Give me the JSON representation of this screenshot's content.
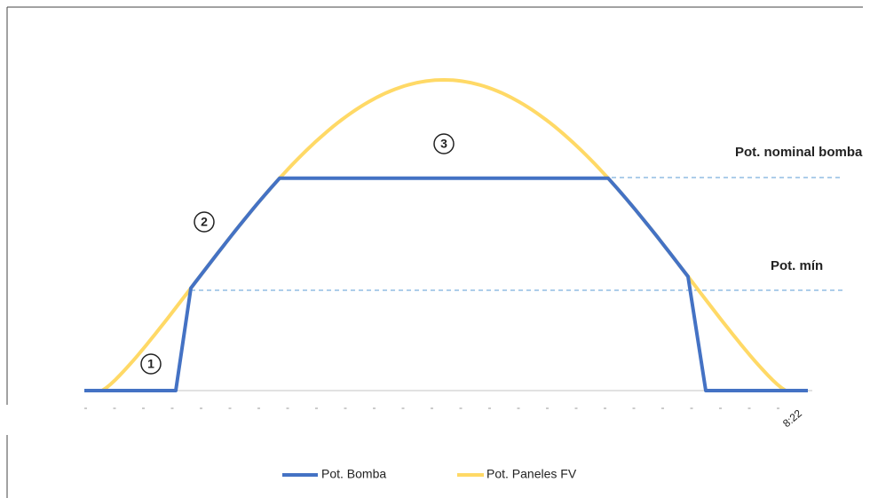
{
  "labels": {
    "nominal": "Pot. nominal bomba",
    "min": "Pot. mín",
    "zone1": "1",
    "zone2": "2",
    "zone3": "3",
    "x_tick": "8:22"
  },
  "legend": [
    {
      "name": "Pot. Bomba",
      "color": "#4472c4"
    },
    {
      "name": "Pot. Paneles FV",
      "color": "#ffd966"
    }
  ]
}
